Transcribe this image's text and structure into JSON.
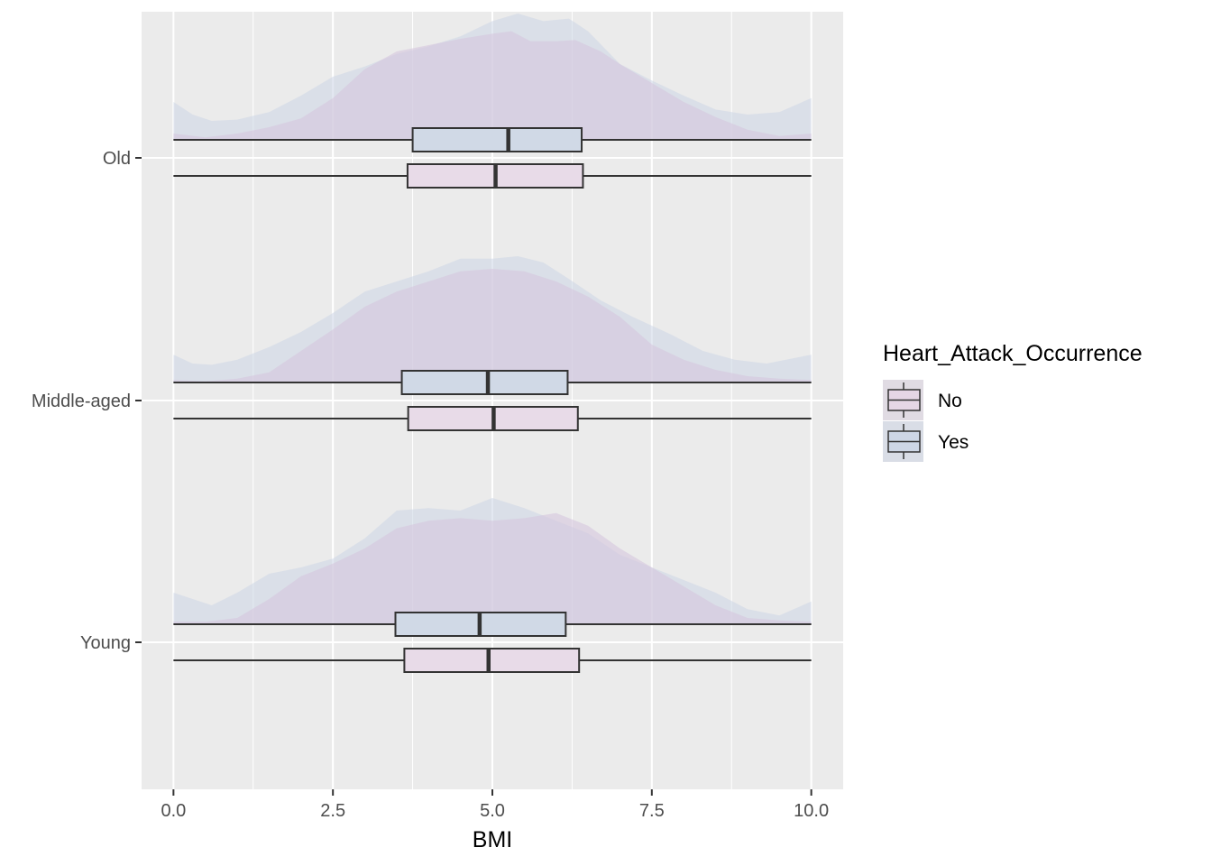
{
  "chart_data": {
    "type": "boxplot",
    "xlabel": "BMI",
    "ylabel": "",
    "xlim": [
      -0.5,
      10.5
    ],
    "x_ticks": [
      0.0,
      2.5,
      5.0,
      7.5,
      10.0
    ],
    "x_tick_labels": [
      "0.0",
      "2.5",
      "5.0",
      "7.5",
      "10.0"
    ],
    "categories": [
      "Old",
      "Middle-aged",
      "Young"
    ],
    "grid": true,
    "legend": {
      "title": "Heart_Attack_Occurrence",
      "position": "right",
      "entries": [
        {
          "label": "No",
          "color": "#e5d6e5"
        },
        {
          "label": "Yes",
          "color": "#cdd6e5"
        }
      ]
    },
    "colors": {
      "No": "#e8dbe8",
      "Yes": "#d0d9e6",
      "density_No": "#d6c6de",
      "density_Yes": "#ccd6e6",
      "panel": "#ebebeb",
      "grid": "#ffffff",
      "line": "#333333"
    },
    "series": [
      {
        "category": "Old",
        "groups": [
          {
            "name": "Yes",
            "min": 0.0,
            "q1": 3.75,
            "median": 5.25,
            "q3": 6.4,
            "max": 10.0
          },
          {
            "name": "No",
            "min": 0.0,
            "q1": 3.67,
            "median": 5.05,
            "q3": 6.42,
            "max": 10.0
          }
        ],
        "density": {
          "No": [
            [
              0.0,
              0.05
            ],
            [
              0.5,
              0.02
            ],
            [
              1.0,
              0.05
            ],
            [
              1.5,
              0.1
            ],
            [
              2.0,
              0.17
            ],
            [
              2.5,
              0.33
            ],
            [
              3.0,
              0.56
            ],
            [
              3.5,
              0.7
            ],
            [
              4.0,
              0.75
            ],
            [
              4.5,
              0.8
            ],
            [
              5.0,
              0.84
            ],
            [
              5.3,
              0.86
            ],
            [
              5.6,
              0.78
            ],
            [
              6.0,
              0.78
            ],
            [
              6.3,
              0.79
            ],
            [
              6.7,
              0.7
            ],
            [
              7.0,
              0.6
            ],
            [
              7.5,
              0.45
            ],
            [
              8.0,
              0.3
            ],
            [
              8.5,
              0.18
            ],
            [
              9.0,
              0.08
            ],
            [
              9.5,
              0.03
            ],
            [
              10.0,
              0.05
            ]
          ],
          "Yes": [
            [
              0.0,
              0.3
            ],
            [
              0.3,
              0.2
            ],
            [
              0.6,
              0.15
            ],
            [
              1.0,
              0.16
            ],
            [
              1.5,
              0.22
            ],
            [
              2.0,
              0.35
            ],
            [
              2.5,
              0.5
            ],
            [
              3.0,
              0.58
            ],
            [
              3.5,
              0.68
            ],
            [
              4.0,
              0.74
            ],
            [
              4.5,
              0.82
            ],
            [
              5.0,
              0.94
            ],
            [
              5.4,
              1.0
            ],
            [
              5.8,
              0.94
            ],
            [
              6.2,
              0.96
            ],
            [
              6.5,
              0.86
            ],
            [
              7.0,
              0.6
            ],
            [
              7.5,
              0.47
            ],
            [
              8.0,
              0.35
            ],
            [
              8.5,
              0.24
            ],
            [
              9.0,
              0.2
            ],
            [
              9.5,
              0.22
            ],
            [
              10.0,
              0.33
            ]
          ]
        }
      },
      {
        "category": "Middle-aged",
        "groups": [
          {
            "name": "Yes",
            "min": 0.0,
            "q1": 3.58,
            "median": 4.93,
            "q3": 6.18,
            "max": 10.0
          },
          {
            "name": "No",
            "min": 0.0,
            "q1": 3.68,
            "median": 5.02,
            "q3": 6.34,
            "max": 10.0
          }
        ],
        "density": {
          "No": [
            [
              0.0,
              0.02
            ],
            [
              0.5,
              0.01
            ],
            [
              1.0,
              0.03
            ],
            [
              1.5,
              0.08
            ],
            [
              2.0,
              0.25
            ],
            [
              2.5,
              0.42
            ],
            [
              3.0,
              0.6
            ],
            [
              3.5,
              0.72
            ],
            [
              4.0,
              0.8
            ],
            [
              4.5,
              0.88
            ],
            [
              5.0,
              0.9
            ],
            [
              5.5,
              0.88
            ],
            [
              6.0,
              0.8
            ],
            [
              6.5,
              0.68
            ],
            [
              7.0,
              0.52
            ],
            [
              7.5,
              0.3
            ],
            [
              8.0,
              0.18
            ],
            [
              8.5,
              0.1
            ],
            [
              9.0,
              0.05
            ],
            [
              9.5,
              0.03
            ],
            [
              10.0,
              0.02
            ]
          ],
          "Yes": [
            [
              0.0,
              0.22
            ],
            [
              0.3,
              0.15
            ],
            [
              0.6,
              0.14
            ],
            [
              1.0,
              0.18
            ],
            [
              1.5,
              0.28
            ],
            [
              2.0,
              0.4
            ],
            [
              2.5,
              0.55
            ],
            [
              3.0,
              0.72
            ],
            [
              3.5,
              0.8
            ],
            [
              4.0,
              0.88
            ],
            [
              4.5,
              0.98
            ],
            [
              5.0,
              0.98
            ],
            [
              5.4,
              1.0
            ],
            [
              5.8,
              0.95
            ],
            [
              6.2,
              0.82
            ],
            [
              6.7,
              0.65
            ],
            [
              7.2,
              0.52
            ],
            [
              7.8,
              0.38
            ],
            [
              8.3,
              0.25
            ],
            [
              8.8,
              0.18
            ],
            [
              9.3,
              0.15
            ],
            [
              10.0,
              0.22
            ]
          ]
        }
      },
      {
        "category": "Young",
        "groups": [
          {
            "name": "Yes",
            "min": 0.0,
            "q1": 3.48,
            "median": 4.8,
            "q3": 6.15,
            "max": 10.0
          },
          {
            "name": "No",
            "min": 0.0,
            "q1": 3.62,
            "median": 4.94,
            "q3": 6.36,
            "max": 10.0
          }
        ],
        "density": {
          "No": [
            [
              0.0,
              0.02
            ],
            [
              0.5,
              0.02
            ],
            [
              1.0,
              0.05
            ],
            [
              1.5,
              0.2
            ],
            [
              2.0,
              0.38
            ],
            [
              2.5,
              0.48
            ],
            [
              3.0,
              0.6
            ],
            [
              3.5,
              0.76
            ],
            [
              4.0,
              0.82
            ],
            [
              4.5,
              0.84
            ],
            [
              5.0,
              0.82
            ],
            [
              5.5,
              0.84
            ],
            [
              6.0,
              0.88
            ],
            [
              6.5,
              0.78
            ],
            [
              7.0,
              0.6
            ],
            [
              7.5,
              0.45
            ],
            [
              8.0,
              0.3
            ],
            [
              8.5,
              0.15
            ],
            [
              9.0,
              0.05
            ],
            [
              9.5,
              0.03
            ],
            [
              10.0,
              0.02
            ]
          ],
          "Yes": [
            [
              0.0,
              0.25
            ],
            [
              0.3,
              0.2
            ],
            [
              0.6,
              0.15
            ],
            [
              1.0,
              0.25
            ],
            [
              1.5,
              0.4
            ],
            [
              2.0,
              0.45
            ],
            [
              2.5,
              0.52
            ],
            [
              3.0,
              0.68
            ],
            [
              3.5,
              0.9
            ],
            [
              4.0,
              0.92
            ],
            [
              4.5,
              0.9
            ],
            [
              5.0,
              1.0
            ],
            [
              5.5,
              0.92
            ],
            [
              6.0,
              0.82
            ],
            [
              6.5,
              0.72
            ],
            [
              7.0,
              0.55
            ],
            [
              7.5,
              0.45
            ],
            [
              8.0,
              0.35
            ],
            [
              8.5,
              0.25
            ],
            [
              9.0,
              0.12
            ],
            [
              9.5,
              0.07
            ],
            [
              10.0,
              0.18
            ]
          ]
        }
      }
    ]
  }
}
